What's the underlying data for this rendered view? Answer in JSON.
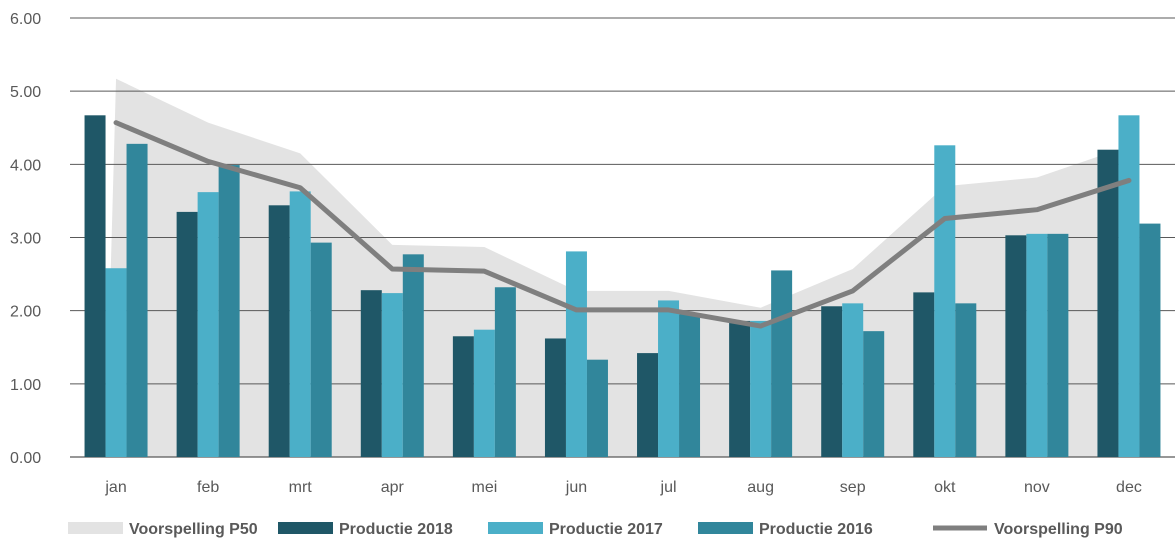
{
  "chart_data": {
    "type": "bar",
    "categories": [
      "jan",
      "feb",
      "mrt",
      "apr",
      "mei",
      "jun",
      "jul",
      "aug",
      "sep",
      "okt",
      "nov",
      "dec"
    ],
    "ylim": [
      0,
      6
    ],
    "yticks": [
      "0.00",
      "1.00",
      "2.00",
      "3.00",
      "4.00",
      "5.00",
      "6.00"
    ],
    "ytick_values": [
      0,
      1,
      2,
      3,
      4,
      5,
      6
    ],
    "grid": true,
    "legend_position": "bottom",
    "bar_series": [
      {
        "name": "Productie 2018",
        "color": "#1f5767",
        "values": [
          4.67,
          3.35,
          3.44,
          2.28,
          1.65,
          1.62,
          1.42,
          1.86,
          2.06,
          2.25,
          3.03,
          4.2
        ]
      },
      {
        "name": "Productie 2017",
        "color": "#4bafc8",
        "values": [
          2.58,
          3.62,
          3.63,
          2.24,
          1.74,
          2.81,
          2.14,
          1.86,
          2.1,
          4.26,
          3.05,
          4.67
        ]
      },
      {
        "name": "Productie 2016",
        "color": "#31869b",
        "values": [
          4.28,
          3.99,
          2.93,
          2.77,
          2.32,
          1.33,
          1.95,
          2.55,
          1.72,
          2.1,
          3.05,
          3.19
        ]
      }
    ],
    "area_series": {
      "name": "Voorspelling P50",
      "color": "#e3e3e3",
      "values": [
        5.17,
        4.57,
        4.15,
        2.9,
        2.87,
        2.27,
        2.27,
        2.04,
        2.57,
        3.7,
        3.82,
        4.25
      ]
    },
    "line_series": {
      "name": "Voorspelling P90",
      "color": "#7f7f7f",
      "values": [
        4.57,
        4.04,
        3.68,
        2.57,
        2.54,
        2.01,
        2.01,
        1.79,
        2.27,
        3.26,
        3.38,
        3.78
      ]
    },
    "legend": [
      {
        "name": "Voorspelling P50",
        "kind": "area",
        "color": "#e3e3e3"
      },
      {
        "name": "Productie 2018",
        "kind": "bar",
        "color": "#1f5767"
      },
      {
        "name": "Productie 2017",
        "kind": "bar",
        "color": "#4bafc8"
      },
      {
        "name": "Productie 2016",
        "kind": "bar",
        "color": "#31869b"
      },
      {
        "name": "Voorspelling P90",
        "kind": "line",
        "color": "#7f7f7f"
      }
    ],
    "gridline_color": "#595959"
  }
}
